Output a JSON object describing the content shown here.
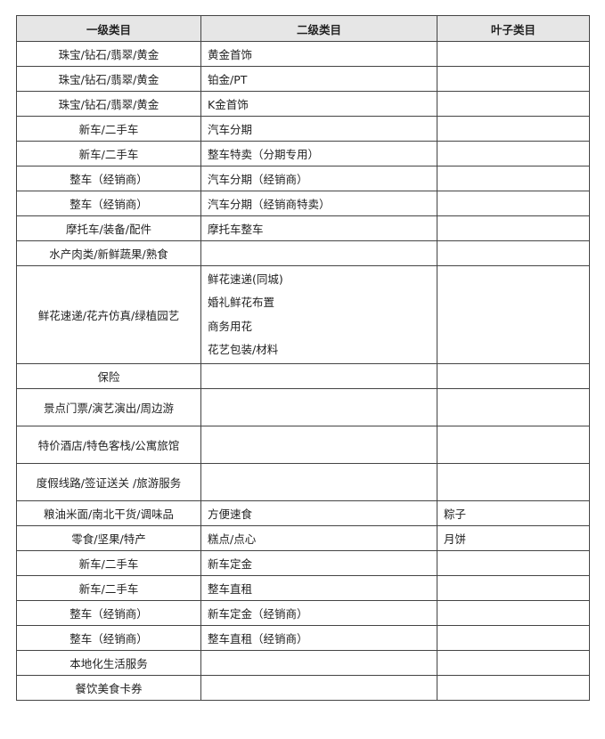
{
  "table": {
    "header": [
      "一级类目",
      "二级类目",
      "叶子类目"
    ],
    "rows": [
      [
        "珠宝/钻石/翡翠/黄金",
        "黄金首饰",
        null
      ],
      [
        "珠宝/钻石/翡翠/黄金",
        "铂金/PT",
        null
      ],
      [
        "珠宝/钻石/翡翠/黄金",
        "K金首饰",
        null
      ],
      [
        "新车/二手车",
        "汽车分期",
        null
      ],
      [
        "新车/二手车",
        "整车特卖（分期专用）",
        null
      ],
      [
        "整车（经销商）",
        "汽车分期（经销商）",
        null
      ],
      [
        "整车（经销商）",
        "汽车分期（经销商特卖）",
        null
      ],
      [
        "摩托车/装备/配件",
        "摩托车整车",
        null
      ],
      [
        "水产肉类/新鲜蔬果/熟食",
        null,
        null
      ],
      [
        "鲜花速递/花卉仿真/绿植园艺",
        [
          "鲜花速递(同城)",
          "婚礼鲜花布置",
          "商务用花",
          "花艺包装/材料"
        ],
        null
      ],
      [
        "保险",
        null,
        null
      ],
      [
        "景点门票/演艺演出/周边游",
        null,
        null
      ],
      [
        "特价酒店/特色客栈/公寓旅馆",
        null,
        null
      ],
      [
        "度假线路/签证送关 /旅游服务",
        null,
        null
      ],
      [
        "粮油米面/南北干货/调味品",
        "方便速食",
        "粽子"
      ],
      [
        "零食/坚果/特产",
        "糕点/点心",
        "月饼"
      ],
      [
        "新车/二手车",
        "新车定金",
        null
      ],
      [
        "新车/二手车",
        "整车直租",
        null
      ],
      [
        "整车（经销商）",
        "新车定金（经销商）",
        null
      ],
      [
        "整车（经销商）",
        "整车直租（经销商）",
        null
      ],
      [
        "本地化生活服务",
        null,
        null
      ],
      [
        "餐饮美食卡券",
        null,
        null
      ]
    ]
  }
}
